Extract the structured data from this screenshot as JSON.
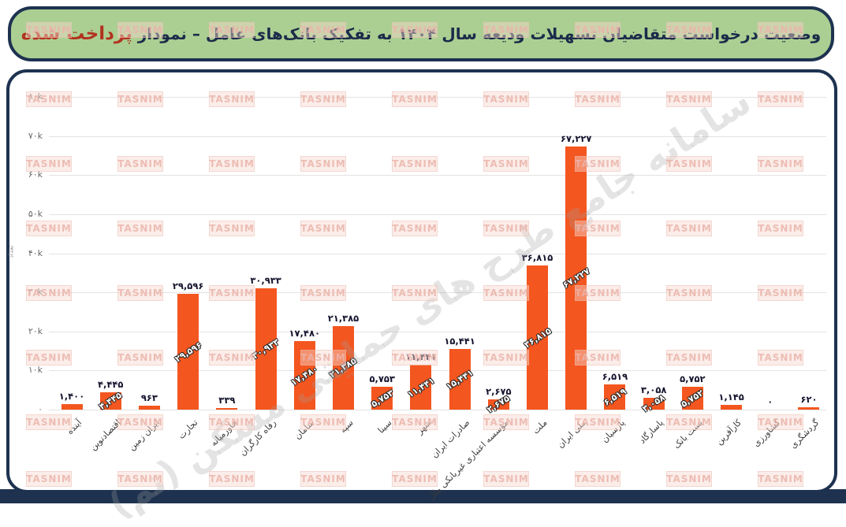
{
  "header": {
    "title_main": "وضعیت درخواست متقاضیان تسهیلات ودیعه سال ۱۴۰۴ به تفکیک بانک‌های عامل – نمودار",
    "title_highlight": "پرداخت شده"
  },
  "watermark": {
    "tile_text": "TASNIM",
    "diagonal_text": "سامانه جامع طرح های حمایتی مسکن (تم)"
  },
  "chart_data": {
    "type": "bar",
    "title": "وضعیت درخواست متقاضیان تسهیلات ودیعه سال ۱۴۰۴ به تفکیک بانک‌های عامل – نمودار پرداخت شده",
    "xlabel": "",
    "ylabel": "تعداد",
    "ylim": [
      0,
      80000
    ],
    "grid": true,
    "bar_color": "#F4561F",
    "y_ticks": [
      {
        "label": "۸۰k",
        "value": 80000
      },
      {
        "label": "۷۰k",
        "value": 70000
      },
      {
        "label": "۶۰k",
        "value": 60000
      },
      {
        "label": "۵۰k",
        "value": 50000
      },
      {
        "label": "۴۰k",
        "value": 40000
      },
      {
        "label": "۳۰k",
        "value": 30000
      },
      {
        "label": "۲۰k",
        "value": 20000
      },
      {
        "label": "۱۰k",
        "value": 10000
      },
      {
        "label": "۰",
        "value": 0
      }
    ],
    "categories": [
      "آینده",
      "اقتصادنوین",
      "ایران زمین",
      "تجارت",
      "خاورمیانه",
      "رفاه کارگران",
      "سامان",
      "سپه",
      "سینا",
      "شهر",
      "صادرات ایران",
      "مؤسسه اعتباری غیربانکی ملل",
      "ملت",
      "ملی ایران",
      "پارسیان",
      "پاسارگاد",
      "پست بانک",
      "کارآفرین",
      "کشاورزی",
      "گردشگری"
    ],
    "values": [
      1400,
      4445,
      963,
      29596,
      339,
      30933,
      17480,
      21385,
      5753,
      11441,
      15441,
      2675,
      36815,
      67227,
      6519,
      3058,
      5752,
      1145,
      0,
      620
    ],
    "value_labels": [
      "۱,۴۰۰",
      "۴,۴۴۵",
      "۹۶۳",
      "۲۹,۵۹۶",
      "۳۳۹",
      "۳۰,۹۳۳",
      "۱۷,۴۸۰",
      "۲۱,۳۸۵",
      "۵,۷۵۳",
      "۱۱,۴۴۱",
      "۱۵,۴۴۱",
      "۲,۶۷۵",
      "۳۶,۸۱۵",
      "۶۷,۲۲۷",
      "۶,۵۱۹",
      "۳,۰۵۸",
      "۵,۷۵۲",
      "۱,۱۴۵",
      "۰",
      "۶۲۰"
    ]
  },
  "colors": {
    "header_bg": "#ABCF92",
    "border_navy": "#1E3250",
    "title_text": "#1B2B4A",
    "title_highlight": "#B23320",
    "bar": "#F4561F",
    "gridline": "#E3E3E3"
  }
}
